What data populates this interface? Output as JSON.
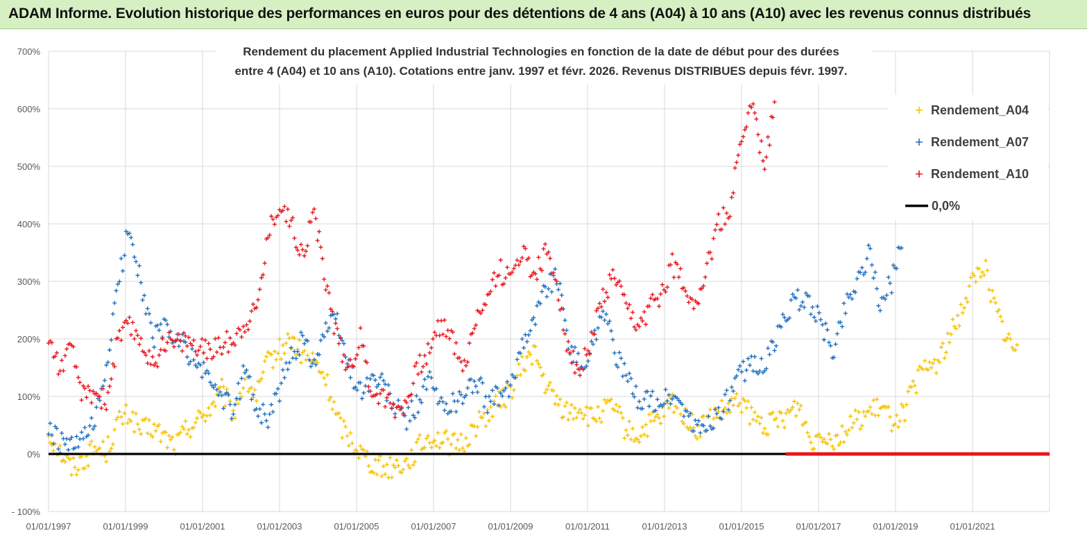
{
  "header": {
    "title": "ADAM Informe. Evolution historique des performances en euros pour des détentions de 4 ans (A04) à 10 ans (A10) avec les revenus connus distribués"
  },
  "chart_data": {
    "type": "scatter",
    "title_line1": "Rendement du placement Applied Industrial Technologies en fonction de la date de début pour des durées",
    "title_line2": "entre 4 (A04) et 10 ans (A10).  Cotations entre janv. 1997 et févr. 2026. Revenus DISTRIBUES depuis févr. 1997.",
    "xlabel": "",
    "ylabel": "",
    "x_range_years": [
      1997.0,
      2023.0
    ],
    "ylim": [
      -100,
      700
    ],
    "y_ticks": [
      -100,
      0,
      100,
      200,
      300,
      400,
      500,
      600,
      700
    ],
    "y_tick_labels": [
      "- 100%",
      "0%",
      "100%",
      "200%",
      "300%",
      "400%",
      "500%",
      "600%",
      "700%"
    ],
    "x_ticks": [
      1997,
      1999,
      2001,
      2003,
      2005,
      2007,
      2009,
      2011,
      2013,
      2015,
      2017,
      2019,
      2021
    ],
    "x_tick_labels": [
      "01/01/1997",
      "01/01/1999",
      "01/01/2001",
      "01/01/2003",
      "01/01/2005",
      "01/01/2007",
      "01/01/2009",
      "01/01/2011",
      "01/01/2013",
      "01/01/2015",
      "01/01/2017",
      "01/01/2019",
      "01/01/2021"
    ],
    "grid": true,
    "legend_position": "top-right",
    "series": [
      {
        "name": "Rendement_A04",
        "color": "#f5c200",
        "marker": "plus",
        "x": [
          1997.0,
          1997.3,
          1997.6,
          1997.9,
          1998.2,
          1998.5,
          1998.8,
          1999.1,
          1999.4,
          1999.7,
          2000.0,
          2000.3,
          2000.6,
          2000.9,
          2001.2,
          2001.5,
          2001.8,
          2002.1,
          2002.4,
          2002.7,
          2003.0,
          2003.3,
          2003.6,
          2003.9,
          2004.2,
          2004.5,
          2004.8,
          2005.1,
          2005.4,
          2005.7,
          2006.0,
          2006.3,
          2006.6,
          2006.9,
          2007.2,
          2007.5,
          2007.8,
          2008.1,
          2008.4,
          2008.7,
          2009.0,
          2009.3,
          2009.6,
          2009.9,
          2010.2,
          2010.5,
          2010.8,
          2011.1,
          2011.4,
          2011.7,
          2012.0,
          2012.3,
          2012.6,
          2012.9,
          2013.2,
          2013.5,
          2013.8,
          2014.1,
          2014.4,
          2014.7,
          2015.0,
          2015.3,
          2015.6,
          2015.9,
          2016.2,
          2016.5,
          2016.8,
          2017.1,
          2017.4,
          2017.7,
          2018.0,
          2018.3,
          2018.6,
          2018.9,
          2019.2,
          2019.5,
          2019.8,
          2020.1,
          2020.4,
          2020.7,
          2021.0,
          2021.3,
          2021.6,
          2021.9,
          2022.2
        ],
        "y": [
          35,
          5,
          -25,
          -10,
          10,
          5,
          55,
          70,
          40,
          45,
          30,
          15,
          45,
          60,
          80,
          110,
          70,
          130,
          100,
          160,
          180,
          200,
          170,
          160,
          130,
          60,
          30,
          5,
          -15,
          -25,
          -20,
          -15,
          10,
          30,
          25,
          15,
          20,
          50,
          70,
          90,
          110,
          150,
          180,
          120,
          90,
          70,
          80,
          60,
          75,
          80,
          40,
          30,
          50,
          60,
          90,
          70,
          40,
          55,
          70,
          80,
          90,
          60,
          50,
          55,
          70,
          85,
          20,
          40,
          25,
          40,
          60,
          70,
          80,
          60,
          70,
          120,
          150,
          160,
          200,
          250,
          300,
          330,
          250,
          200,
          170
        ]
      },
      {
        "name": "Rendement_A07",
        "color": "#1f6fbf",
        "marker": "plus",
        "x": [
          1997.0,
          1997.3,
          1997.6,
          1997.9,
          1998.2,
          1998.5,
          1998.8,
          1999.1,
          1999.4,
          1999.7,
          2000.0,
          2000.3,
          2000.6,
          2000.9,
          2001.2,
          2001.5,
          2001.8,
          2002.1,
          2002.4,
          2002.7,
          2003.0,
          2003.3,
          2003.6,
          2003.9,
          2004.2,
          2004.5,
          2004.8,
          2005.1,
          2005.4,
          2005.7,
          2006.0,
          2006.3,
          2006.6,
          2006.9,
          2007.2,
          2007.5,
          2007.8,
          2008.1,
          2008.4,
          2008.7,
          2009.0,
          2009.3,
          2009.6,
          2009.9,
          2010.2,
          2010.5,
          2010.8,
          2011.1,
          2011.4,
          2011.7,
          2012.0,
          2012.3,
          2012.6,
          2012.9,
          2013.2,
          2013.5,
          2013.8,
          2014.1,
          2014.4,
          2014.7,
          2015.0,
          2015.3,
          2015.6,
          2015.9,
          2016.2,
          2016.5,
          2016.8,
          2017.1,
          2017.4,
          2017.7,
          2018.0,
          2018.3,
          2018.6,
          2018.9,
          2019.2
        ],
        "y": [
          40,
          20,
          10,
          25,
          50,
          150,
          290,
          400,
          300,
          200,
          220,
          200,
          180,
          150,
          130,
          100,
          70,
          150,
          80,
          60,
          110,
          170,
          200,
          160,
          220,
          230,
          150,
          110,
          130,
          120,
          80,
          60,
          90,
          130,
          80,
          90,
          100,
          130,
          90,
          100,
          110,
          200,
          230,
          290,
          310,
          200,
          150,
          180,
          260,
          180,
          130,
          100,
          90,
          90,
          100,
          80,
          40,
          50,
          70,
          100,
          140,
          160,
          150,
          200,
          250,
          270,
          260,
          220,
          180,
          260,
          300,
          350,
          260,
          300,
          390
        ]
      },
      {
        "name": "Rendement_A10",
        "color": "#e8141b",
        "marker": "plus",
        "x": [
          1997.0,
          1997.3,
          1997.6,
          1997.9,
          1998.2,
          1998.5,
          1998.8,
          1999.1,
          1999.4,
          1999.7,
          2000.0,
          2000.3,
          2000.6,
          2000.9,
          2001.2,
          2001.5,
          2001.8,
          2002.1,
          2002.4,
          2002.7,
          2003.0,
          2003.3,
          2003.6,
          2003.9,
          2004.2,
          2004.5,
          2004.8,
          2005.1,
          2005.4,
          2005.7,
          2006.0,
          2006.3,
          2006.6,
          2006.9,
          2007.2,
          2007.5,
          2007.8,
          2008.1,
          2008.4,
          2008.7,
          2009.0,
          2009.3,
          2009.6,
          2009.9,
          2010.2,
          2010.5,
          2010.8,
          2011.1,
          2011.4,
          2011.7,
          2012.0,
          2012.3,
          2012.6,
          2012.9,
          2013.2,
          2013.5,
          2013.8,
          2014.1,
          2014.4,
          2014.7,
          2015.0,
          2015.3,
          2015.6,
          2015.9
        ],
        "y": [
          200,
          150,
          180,
          100,
          110,
          90,
          200,
          220,
          200,
          150,
          200,
          190,
          200,
          180,
          180,
          190,
          200,
          230,
          250,
          380,
          440,
          400,
          350,
          420,
          300,
          200,
          150,
          200,
          110,
          100,
          80,
          90,
          150,
          180,
          230,
          200,
          150,
          230,
          280,
          320,
          300,
          360,
          310,
          350,
          300,
          180,
          140,
          200,
          270,
          310,
          250,
          220,
          250,
          280,
          330,
          300,
          260,
          320,
          400,
          420,
          560,
          600,
          500,
          620
        ]
      },
      {
        "name": "0,0%",
        "color": "#000000",
        "marker": "line",
        "x": [
          1997.0,
          2023.0
        ],
        "y": [
          0,
          0
        ]
      }
    ],
    "zero_red_band": {
      "x": [
        2016.15,
        2023.0
      ],
      "y": [
        0,
        0
      ]
    }
  }
}
